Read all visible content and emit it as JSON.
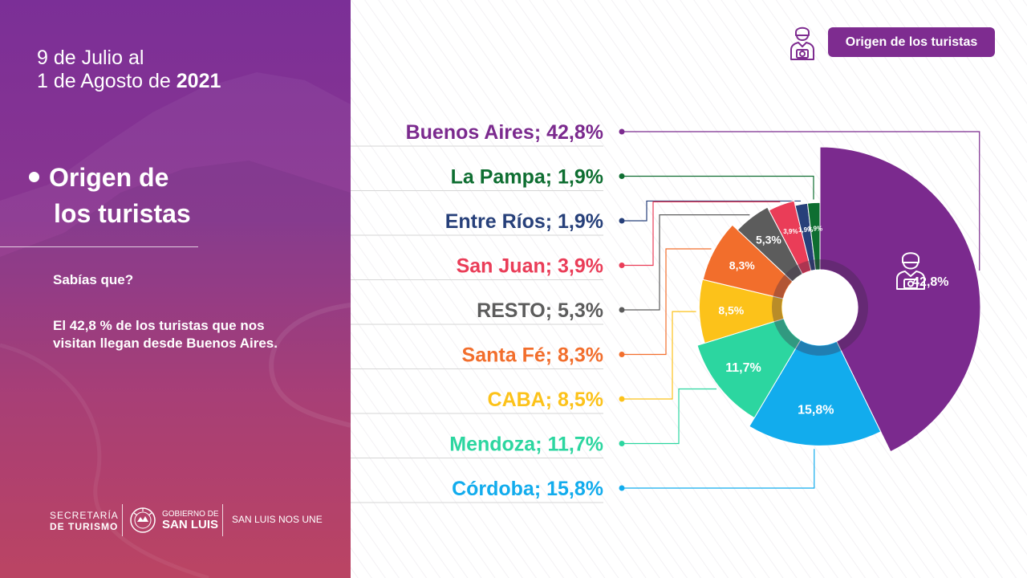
{
  "left_panel": {
    "date_line1": "9 de Julio al",
    "date_line2_prefix": "1 de Agosto de ",
    "date_year": "2021",
    "title_line1": "Origen de",
    "title_line2": "los turistas",
    "fact_question": "Sabías que?",
    "fact_text": "El 42,8 % de los turistas que nos visitan llegan desde Buenos Aires.",
    "footer": {
      "secretaria_line1": "SECRETARÍA",
      "secretaria_line2": "DE TURISMO",
      "gobierno_line1": "GOBIERNO DE",
      "gobierno_line2": "SAN LUIS",
      "slogan": "SAN LUIS NOS UNE"
    }
  },
  "header": {
    "button_label": "Origen de los turistas",
    "icon": "tourist-camera-icon"
  },
  "chart_data": {
    "type": "pie",
    "slices": [
      {
        "name": "Buenos Aires",
        "value": 42.8,
        "legend": "Buenos Aires; 42,8%",
        "label": "42,8%",
        "color": "#7b2a8e"
      },
      {
        "name": "Córdoba",
        "value": 15.8,
        "legend": "Córdoba; 15,8%",
        "label": "15,8%",
        "color": "#12aced"
      },
      {
        "name": "Mendoza",
        "value": 11.7,
        "legend": "Mendoza; 11,7%",
        "label": "11,7%",
        "color": "#2cd6a0"
      },
      {
        "name": "CABA",
        "value": 8.5,
        "legend": "CABA; 8,5%",
        "label": "8,5%",
        "color": "#fcc21a"
      },
      {
        "name": "Santa Fé",
        "value": 8.3,
        "legend": "Santa Fé; 8,3%",
        "label": "8,3%",
        "color": "#f26e2c"
      },
      {
        "name": "RESTO",
        "value": 5.3,
        "legend": "RESTO; 5,3%",
        "label": "5,3%",
        "color": "#5c5c5c"
      },
      {
        "name": "San Juan",
        "value": 3.9,
        "legend": "San Juan; 3,9%",
        "label": "3,9%",
        "color": "#ea3d58"
      },
      {
        "name": "Entre Ríos",
        "value": 1.9,
        "legend": "Entre Ríos; 1,9%",
        "label": "1,9%",
        "color": "#27407a"
      },
      {
        "name": "La Pampa",
        "value": 1.9,
        "legend": "La Pampa; 1,9%",
        "label": "1,9%",
        "color": "#0e6e31"
      }
    ],
    "legend_order": [
      "Buenos Aires",
      "La Pampa",
      "Entre Ríos",
      "San Juan",
      "RESTO",
      "Santa Fé",
      "CABA",
      "Mendoza",
      "Córdoba"
    ],
    "center_icon": "tourist-camera-icon",
    "legend_placement": "left"
  }
}
